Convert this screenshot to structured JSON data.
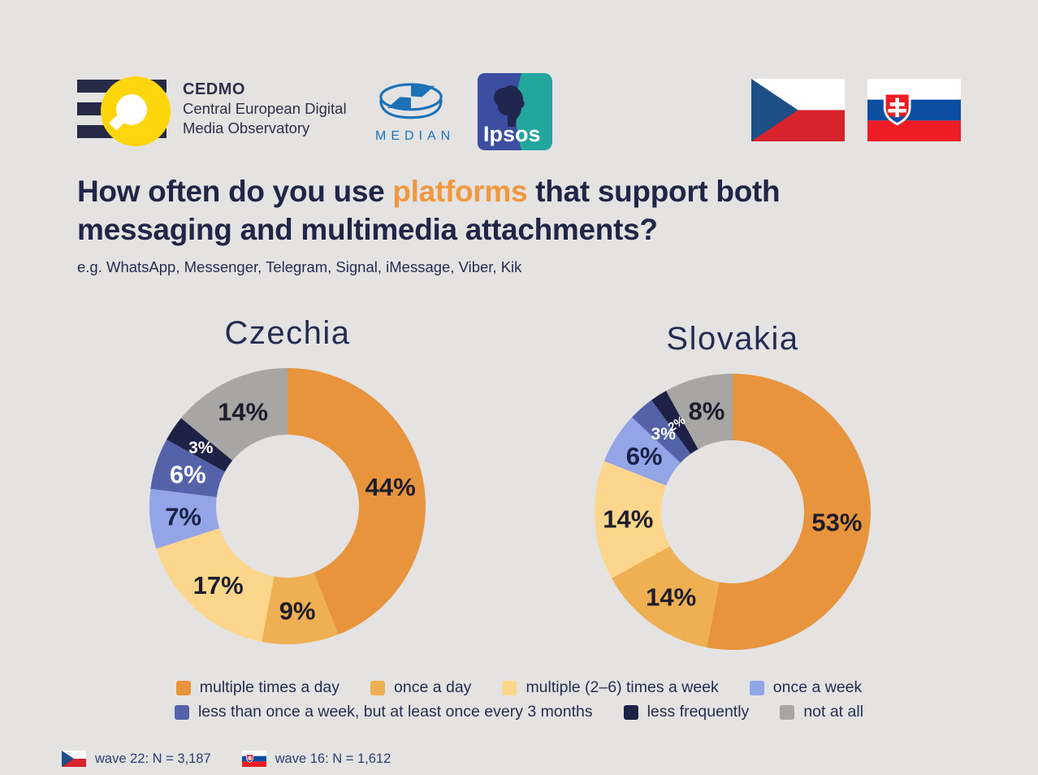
{
  "header": {
    "cedmo": {
      "acronym": "CEDMO",
      "line1": "Central European Digital",
      "line2": "Media Observatory"
    },
    "median": {
      "label": "MEDIAN"
    },
    "ipsos": {
      "label": "Ipsos"
    },
    "flags": [
      "czech-flag",
      "slovak-flag"
    ]
  },
  "title": {
    "prefix": "How often do you use ",
    "highlight": "platforms",
    "suffix": " that support both messaging and multimedia attachments?"
  },
  "subtitle": "e.g. WhatsApp, Messenger, Telegram, Signal, iMessage, Viber, Kik",
  "chart_data": {
    "type": "pie",
    "style": "donut",
    "unit": "%",
    "direction": "clockwise",
    "start_angle_deg": 0,
    "legend_position": "bottom",
    "categories": [
      "multiple times a day",
      "once a day",
      "multiple (2–6) times a week",
      "once a week",
      "less than once a week, but at least once every 3 months",
      "less frequently",
      "not at all"
    ],
    "colors": [
      "#E8943D",
      "#EEB053",
      "#FBD68C",
      "#93A4E7",
      "#5462AA",
      "#1C2145",
      "#A7A6A4"
    ],
    "label_text_colors": [
      "#1D1D2B",
      "#1D1D2B",
      "#1D1D2B",
      "#1B2148",
      "#FFFFFF",
      "#FFFFFF",
      "#1D1D2B"
    ],
    "series": [
      {
        "name": "Czechia",
        "values": [
          44,
          9,
          17,
          7,
          6,
          3,
          14
        ]
      },
      {
        "name": "Slovakia",
        "values": [
          53,
          14,
          14,
          6,
          3,
          2,
          8
        ]
      }
    ],
    "legend_rows": [
      [
        0,
        1,
        2,
        3
      ],
      [
        4,
        5,
        6
      ]
    ]
  },
  "footer": {
    "wave_cz": "wave 22: N = 3,187",
    "wave_sk": "wave 16: N = 1,612"
  }
}
